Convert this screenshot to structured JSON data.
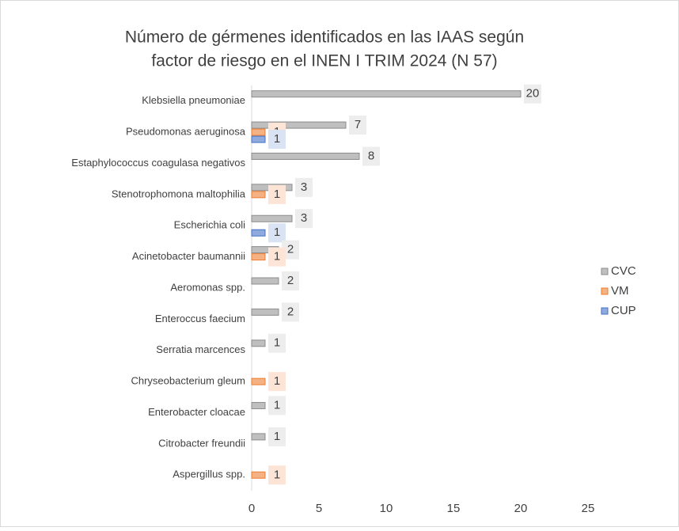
{
  "chart_data": {
    "type": "hbar",
    "title": [
      "Número de gérmenes identificados  en las IAAS según",
      "factor de riesgo en el INEN I TRIM 2024 (N 57)"
    ],
    "categories": [
      "Klebsiella pneumoniae",
      "Pseudomonas aeruginosa",
      "Estaphylococcus coagulasa negativos",
      "Stenotrophomona maltophilia",
      "Escherichia coli",
      "Acinetobacter baumannii",
      "Aeromonas spp.",
      "Enteroccus faecium",
      "Serratia marcences",
      "Chryseobacterium gleum",
      "Enterobacter cloacae",
      "Citrobacter freundii",
      "Aspergillus spp."
    ],
    "series": [
      {
        "name": "CVC",
        "color": "#bfbfbf",
        "values": [
          20,
          7,
          8,
          3,
          3,
          2,
          2,
          2,
          1,
          null,
          1,
          1,
          null
        ]
      },
      {
        "name": "VM",
        "color": "#f4b183",
        "values": [
          null,
          1,
          null,
          1,
          null,
          1,
          null,
          null,
          null,
          1,
          null,
          null,
          1
        ]
      },
      {
        "name": "CUP",
        "color": "#8faadc",
        "values": [
          null,
          1,
          null,
          null,
          1,
          null,
          null,
          null,
          null,
          null,
          null,
          null,
          null
        ]
      }
    ],
    "xlim": [
      0,
      25
    ],
    "xticks": [
      0,
      5,
      10,
      15,
      20,
      25
    ],
    "grid": false,
    "legend": "right"
  }
}
